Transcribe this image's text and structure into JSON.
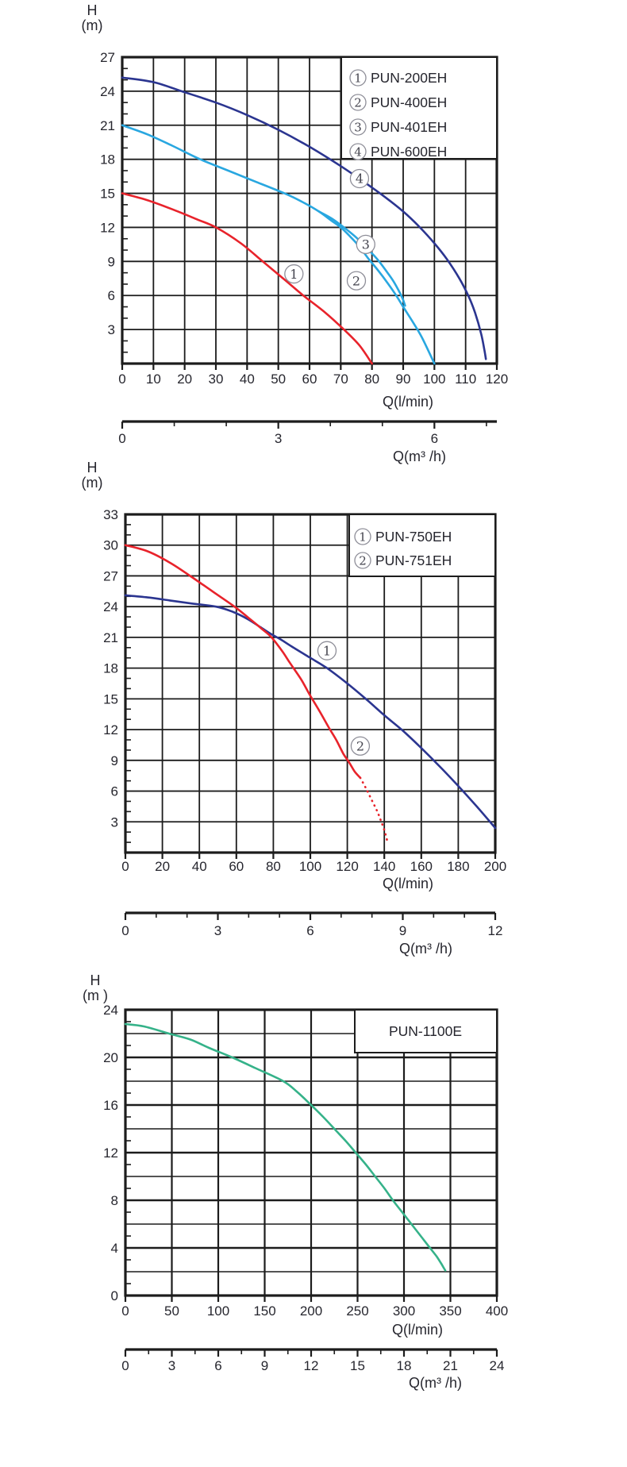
{
  "page": {
    "background": "#ffffff"
  },
  "chart_data": [
    {
      "type": "line",
      "name": "pun-200-600-series-curves",
      "labels": {
        "h": "H",
        "m": "(m)",
        "q_lmin": "Q(l/min)",
        "q_m3h": "Q(m³ /h)"
      },
      "legend": [
        {
          "num": "1",
          "label": "PUN-200EH"
        },
        {
          "num": "2",
          "label": "PUN-400EH"
        },
        {
          "num": "3",
          "label": "PUN-401EH"
        },
        {
          "num": "4",
          "label": "PUN-600EH"
        }
      ],
      "x_axis": {
        "min": 0,
        "max": 120,
        "tick_step": 10,
        "labels": [
          0,
          10,
          20,
          30,
          40,
          50,
          60,
          70,
          80,
          90,
          100,
          110,
          120
        ]
      },
      "y_axis": {
        "min": 0,
        "max": 27,
        "label_step": 3,
        "grid_step": 3,
        "minor_step": 1,
        "labels": [
          3,
          6,
          9,
          12,
          15,
          18,
          21,
          24,
          27
        ]
      },
      "secondary_x_axis": {
        "unit_per_lmin": 16.6667,
        "labels": [
          0,
          3,
          6
        ],
        "minor_step": 1,
        "axis_end_units": 7.2
      },
      "series": [
        {
          "name": "PUN-200EH",
          "circled_number": "1",
          "color": "#e8232b",
          "style": "solid",
          "points": [
            [
              0,
              15
            ],
            [
              8,
              14.4
            ],
            [
              16,
              13.6
            ],
            [
              24,
              12.7
            ],
            [
              30,
              12
            ],
            [
              38,
              10.6
            ],
            [
              45,
              9
            ],
            [
              52,
              7.4
            ],
            [
              58,
              6
            ],
            [
              65,
              4.5
            ],
            [
              71,
              3
            ],
            [
              76,
              1.6
            ],
            [
              80,
              0
            ]
          ]
        },
        {
          "name": "PUN-400EH",
          "circled_number": "2",
          "color": "#29a7e0",
          "style": "solid",
          "points": [
            [
              0,
              21
            ],
            [
              8,
              20.2
            ],
            [
              16,
              19.2
            ],
            [
              25,
              18
            ],
            [
              34,
              17
            ],
            [
              43,
              16
            ],
            [
              52,
              15
            ],
            [
              58,
              14.2
            ],
            [
              63,
              13.4
            ],
            [
              67,
              12.6
            ],
            [
              70,
              12
            ],
            [
              73,
              11.2
            ],
            [
              76,
              10.3
            ],
            [
              79,
              9.2
            ],
            [
              82,
              8.2
            ],
            [
              85,
              7.1
            ],
            [
              88,
              5.9
            ],
            [
              90,
              5
            ],
            [
              93,
              3.7
            ],
            [
              96,
              2.3
            ],
            [
              100,
              0
            ]
          ]
        },
        {
          "name": "PUN-401EH",
          "circled_number": "3",
          "color": "#29a7e0",
          "style": "solid",
          "points": [
            [
              63,
              13.4
            ],
            [
              67,
              12.8
            ],
            [
              71,
              12
            ],
            [
              75,
              11.1
            ],
            [
              79,
              10
            ],
            [
              82,
              9.1
            ],
            [
              85,
              8
            ],
            [
              87,
              7.2
            ],
            [
              89,
              6.2
            ],
            [
              90,
              5.6
            ],
            [
              90.6,
              5.1
            ]
          ]
        },
        {
          "name": "PUN-600EH",
          "circled_number": "4",
          "color": "#2b3590",
          "style": "solid",
          "points": [
            [
              0,
              25.2
            ],
            [
              10,
              24.8
            ],
            [
              19,
              24
            ],
            [
              30,
              23
            ],
            [
              40,
              21.9
            ],
            [
              50,
              20.6
            ],
            [
              60,
              19.1
            ],
            [
              70,
              17.4
            ],
            [
              78,
              15.9
            ],
            [
              85,
              14.5
            ],
            [
              90,
              13.4
            ],
            [
              95,
              12.1
            ],
            [
              100,
              10.6
            ],
            [
              104,
              9.2
            ],
            [
              108,
              7.5
            ],
            [
              111,
              5.9
            ],
            [
              113,
              4.5
            ],
            [
              115,
              2.6
            ],
            [
              116,
              1.2
            ],
            [
              116.5,
              0.4
            ]
          ]
        }
      ],
      "annotations": [
        {
          "num": "1",
          "x": 55,
          "y": 7.9
        },
        {
          "num": "2",
          "x": 75,
          "y": 7.3
        },
        {
          "num": "3",
          "x": 78,
          "y": 10.5
        },
        {
          "num": "4",
          "x": 76,
          "y": 16.3
        }
      ]
    },
    {
      "type": "line",
      "name": "pun-750-751-series-curves",
      "labels": {
        "h": "H",
        "m": "(m)",
        "q_lmin": "Q(l/min)",
        "q_m3h": "Q(m³ /h)"
      },
      "legend": [
        {
          "num": "1",
          "label": "PUN-750EH"
        },
        {
          "num": "2",
          "label": "PUN-751EH"
        }
      ],
      "x_axis": {
        "min": 0,
        "max": 200,
        "tick_step": 20,
        "labels": [
          0,
          20,
          40,
          60,
          80,
          100,
          120,
          140,
          160,
          180,
          200
        ]
      },
      "y_axis": {
        "min": 0,
        "max": 33,
        "label_step": 3,
        "grid_step": 3,
        "minor_step": 1,
        "labels": [
          3,
          6,
          9,
          12,
          15,
          18,
          21,
          24,
          27,
          30,
          33
        ]
      },
      "secondary_x_axis": {
        "unit_per_lmin": 16.6667,
        "labels": [
          0,
          3,
          6,
          9,
          12
        ],
        "minor_step": 1,
        "axis_end_units": 12
      },
      "series": [
        {
          "name": "PUN-750EH",
          "circled_number": "1",
          "color": "#2b3590",
          "style": "solid",
          "points": [
            [
              0,
              25.1
            ],
            [
              12,
              24.9
            ],
            [
              24,
              24.6
            ],
            [
              36,
              24.3
            ],
            [
              49,
              24
            ],
            [
              58,
              23.5
            ],
            [
              66,
              22.8
            ],
            [
              73,
              22
            ],
            [
              79,
              21.3
            ],
            [
              84,
              20.8
            ],
            [
              90,
              20.1
            ],
            [
              100,
              19
            ],
            [
              109,
              18
            ],
            [
              120,
              16.5
            ],
            [
              130,
              15
            ],
            [
              140,
              13.4
            ],
            [
              150,
              11.9
            ],
            [
              160,
              10.2
            ],
            [
              170,
              8.4
            ],
            [
              180,
              6.5
            ],
            [
              190,
              4.5
            ],
            [
              200,
              2.4
            ]
          ]
        },
        {
          "name": "PUN-751EH",
          "circled_number": "2",
          "color": "#e8232b",
          "style": "solid",
          "points": [
            [
              0,
              30
            ],
            [
              12,
              29.4
            ],
            [
              24,
              28.3
            ],
            [
              35,
              27
            ],
            [
              47,
              25.5
            ],
            [
              59,
              24
            ],
            [
              68,
              22.7
            ],
            [
              74,
              21.8
            ],
            [
              79,
              21
            ],
            [
              85,
              19.6
            ],
            [
              89,
              18.5
            ],
            [
              95,
              16.9
            ],
            [
              100,
              15.3
            ],
            [
              105,
              13.8
            ],
            [
              110,
              12.2
            ],
            [
              114,
              11
            ],
            [
              118,
              9.6
            ],
            [
              121,
              8.8
            ],
            [
              124,
              7.9
            ],
            [
              127,
              7.3
            ]
          ]
        },
        {
          "name": "PUN-751EH-extrapolated",
          "circled_number": "2",
          "color": "#e8232b",
          "style": "dotted",
          "points": [
            [
              127,
              7.3
            ],
            [
              130,
              6.3
            ],
            [
              133,
              5.2
            ],
            [
              136,
              4.1
            ],
            [
              138,
              3.2
            ],
            [
              140,
              2.2
            ],
            [
              141.5,
              1.2
            ]
          ]
        }
      ],
      "annotations": [
        {
          "num": "1",
          "x": 109,
          "y": 19.7
        },
        {
          "num": "2",
          "x": 127,
          "y": 10.4
        }
      ]
    },
    {
      "type": "line",
      "name": "pun-1100e-curve",
      "labels": {
        "h": "H",
        "m": "(m )",
        "q_lmin": "Q(l/min)",
        "q_m3h": "Q(m³ /h)"
      },
      "legend": [
        {
          "num": "",
          "label": "PUN-1100E"
        }
      ],
      "x_axis": {
        "min": 0,
        "max": 400,
        "tick_step": 50,
        "labels": [
          0,
          50,
          100,
          150,
          200,
          250,
          300,
          350,
          400
        ]
      },
      "y_axis": {
        "min": 0,
        "max": 24,
        "label_step": 4,
        "grid_step": 2,
        "minor_step": 1,
        "labels": [
          0,
          4,
          8,
          12,
          16,
          20,
          24
        ]
      },
      "secondary_x_axis": {
        "unit_per_lmin": 16.6667,
        "labels": [
          0,
          3,
          6,
          9,
          12,
          15,
          18,
          21,
          24
        ],
        "minor_step": 1.5,
        "axis_end_units": 24
      },
      "series": [
        {
          "name": "PUN-1100E",
          "circled_number": "",
          "color": "#35b289",
          "style": "solid",
          "points": [
            [
              0,
              22.8
            ],
            [
              20,
              22.6
            ],
            [
              47,
              22
            ],
            [
              70,
              21.5
            ],
            [
              90,
              20.8
            ],
            [
              115,
              20
            ],
            [
              140,
              19.1
            ],
            [
              170,
              18
            ],
            [
              185,
              17.1
            ],
            [
              200,
              16
            ],
            [
              213,
              15
            ],
            [
              225,
              14
            ],
            [
              237,
              13
            ],
            [
              248,
              12
            ],
            [
              259,
              11
            ],
            [
              269,
              10
            ],
            [
              279,
              9
            ],
            [
              288,
              8
            ],
            [
              298,
              7
            ],
            [
              308,
              6
            ],
            [
              318,
              5
            ],
            [
              328,
              4
            ],
            [
              335,
              3.3
            ],
            [
              340,
              2.7
            ],
            [
              343,
              2.3
            ],
            [
              344.5,
              2.1
            ]
          ]
        }
      ],
      "annotations": []
    }
  ]
}
